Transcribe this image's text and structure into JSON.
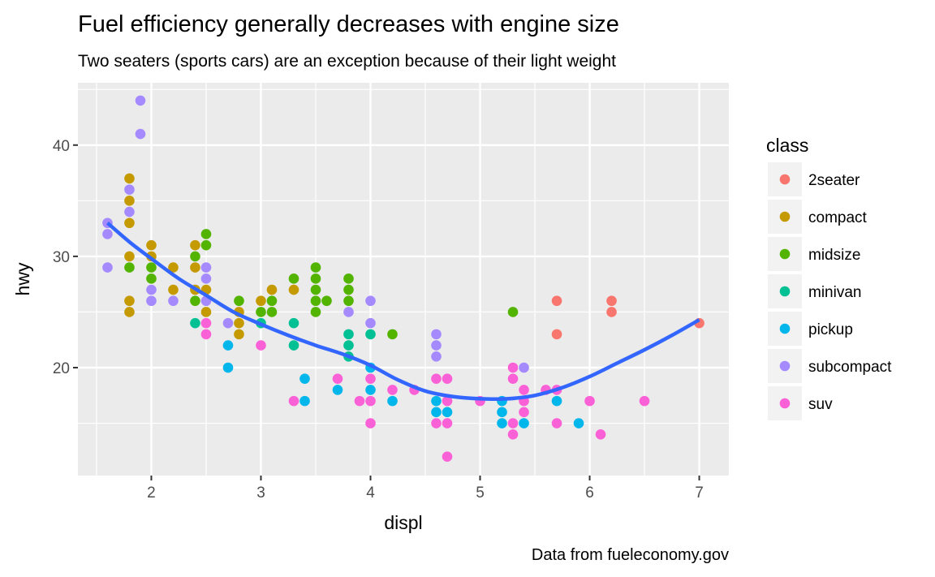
{
  "chart_data": {
    "type": "scatter",
    "title": "Fuel efficiency generally decreases with engine size",
    "subtitle": "Two seaters (sports cars) are an exception because of their light weight",
    "caption": "Data from fueleconomy.gov",
    "xlabel": "displ",
    "ylabel": "hwy",
    "xlim": [
      1.33,
      7.27
    ],
    "ylim": [
      10.3,
      45.6
    ],
    "xticks": [
      2,
      3,
      4,
      5,
      6,
      7
    ],
    "yticks": [
      20,
      30,
      40
    ],
    "x_minor": [
      1.5,
      2.5,
      3.5,
      4.5,
      5.5,
      6.5
    ],
    "y_minor": [
      15,
      25,
      35,
      45
    ],
    "grid": true,
    "legend": {
      "title": "class",
      "position": "right",
      "entries": [
        {
          "name": "2seater",
          "color": "#F8766D"
        },
        {
          "name": "compact",
          "color": "#C49A00"
        },
        {
          "name": "midsize",
          "color": "#53B400"
        },
        {
          "name": "minivan",
          "color": "#00C094"
        },
        {
          "name": "pickup",
          "color": "#00B6EB"
        },
        {
          "name": "subcompact",
          "color": "#A58AFF"
        },
        {
          "name": "suv",
          "color": "#FB61D7"
        }
      ]
    },
    "series": [
      {
        "name": "2seater",
        "points": [
          [
            5.7,
            26
          ],
          [
            5.7,
            23
          ],
          [
            6.2,
            26
          ],
          [
            6.2,
            25
          ],
          [
            7.0,
            24
          ]
        ]
      },
      {
        "name": "compact",
        "points": [
          [
            1.8,
            37
          ],
          [
            1.8,
            35
          ],
          [
            1.8,
            33
          ],
          [
            1.8,
            30
          ],
          [
            1.8,
            26
          ],
          [
            1.8,
            25
          ],
          [
            2.0,
            31
          ],
          [
            2.0,
            30
          ],
          [
            2.2,
            29
          ],
          [
            2.2,
            27
          ],
          [
            2.4,
            31
          ],
          [
            2.4,
            29
          ],
          [
            2.4,
            27
          ],
          [
            2.5,
            27
          ],
          [
            2.5,
            25
          ],
          [
            2.8,
            25
          ],
          [
            2.8,
            24
          ],
          [
            2.8,
            23
          ],
          [
            3.0,
            26
          ],
          [
            3.1,
            27
          ],
          [
            3.3,
            27
          ]
        ]
      },
      {
        "name": "midsize",
        "points": [
          [
            1.8,
            29
          ],
          [
            2.0,
            29
          ],
          [
            2.0,
            28
          ],
          [
            2.4,
            30
          ],
          [
            2.4,
            26
          ],
          [
            2.5,
            32
          ],
          [
            2.5,
            31
          ],
          [
            2.8,
            26
          ],
          [
            3.0,
            25
          ],
          [
            3.1,
            26
          ],
          [
            3.1,
            25
          ],
          [
            3.3,
            28
          ],
          [
            3.5,
            29
          ],
          [
            3.5,
            28
          ],
          [
            3.5,
            27
          ],
          [
            3.5,
            26
          ],
          [
            3.5,
            25
          ],
          [
            3.6,
            26
          ],
          [
            3.8,
            28
          ],
          [
            3.8,
            27
          ],
          [
            3.8,
            26
          ],
          [
            4.2,
            23
          ],
          [
            5.3,
            25
          ]
        ]
      },
      {
        "name": "minivan",
        "points": [
          [
            2.4,
            24
          ],
          [
            3.0,
            24
          ],
          [
            3.3,
            24
          ],
          [
            3.3,
            22
          ],
          [
            3.8,
            23
          ],
          [
            3.8,
            22
          ],
          [
            3.8,
            21
          ],
          [
            4.0,
            23
          ]
        ]
      },
      {
        "name": "pickup",
        "points": [
          [
            2.7,
            22
          ],
          [
            2.7,
            20
          ],
          [
            3.4,
            19
          ],
          [
            3.4,
            17
          ],
          [
            3.7,
            18
          ],
          [
            4.0,
            20
          ],
          [
            4.0,
            18
          ],
          [
            4.2,
            17
          ],
          [
            4.6,
            17
          ],
          [
            4.6,
            16
          ],
          [
            4.7,
            16
          ],
          [
            5.2,
            17
          ],
          [
            5.2,
            16
          ],
          [
            5.2,
            15
          ],
          [
            5.4,
            15
          ],
          [
            5.7,
            17
          ],
          [
            5.9,
            15
          ]
        ]
      },
      {
        "name": "subcompact",
        "points": [
          [
            1.6,
            33
          ],
          [
            1.6,
            32
          ],
          [
            1.6,
            29
          ],
          [
            1.8,
            36
          ],
          [
            1.8,
            34
          ],
          [
            1.9,
            44
          ],
          [
            1.9,
            41
          ],
          [
            2.0,
            27
          ],
          [
            2.0,
            26
          ],
          [
            2.2,
            26
          ],
          [
            2.5,
            29
          ],
          [
            2.5,
            28
          ],
          [
            2.5,
            26
          ],
          [
            2.7,
            24
          ],
          [
            3.8,
            25
          ],
          [
            4.0,
            26
          ],
          [
            4.0,
            24
          ],
          [
            4.6,
            23
          ],
          [
            4.6,
            22
          ],
          [
            4.6,
            21
          ],
          [
            5.4,
            20
          ]
        ]
      },
      {
        "name": "suv",
        "points": [
          [
            2.5,
            24
          ],
          [
            2.5,
            23
          ],
          [
            3.0,
            22
          ],
          [
            3.3,
            17
          ],
          [
            3.7,
            19
          ],
          [
            3.9,
            17
          ],
          [
            4.0,
            19
          ],
          [
            4.0,
            17
          ],
          [
            4.0,
            15
          ],
          [
            4.2,
            18
          ],
          [
            4.4,
            18
          ],
          [
            4.6,
            19
          ],
          [
            4.6,
            15
          ],
          [
            4.7,
            19
          ],
          [
            4.7,
            17
          ],
          [
            4.7,
            15
          ],
          [
            4.7,
            12
          ],
          [
            5.0,
            17
          ],
          [
            5.3,
            20
          ],
          [
            5.3,
            19
          ],
          [
            5.3,
            15
          ],
          [
            5.3,
            14
          ],
          [
            5.4,
            18
          ],
          [
            5.4,
            17
          ],
          [
            5.4,
            16
          ],
          [
            5.6,
            18
          ],
          [
            5.7,
            18
          ],
          [
            5.7,
            15
          ],
          [
            6.0,
            17
          ],
          [
            6.1,
            14
          ],
          [
            6.5,
            17
          ]
        ]
      }
    ],
    "smooth": {
      "color": "#3366FF",
      "points": [
        [
          1.6,
          33.0
        ],
        [
          1.8,
          31.3
        ],
        [
          2.0,
          29.8
        ],
        [
          2.25,
          28.0
        ],
        [
          2.5,
          26.5
        ],
        [
          2.75,
          25.0
        ],
        [
          3.0,
          23.9
        ],
        [
          3.25,
          22.9
        ],
        [
          3.5,
          22.0
        ],
        [
          3.75,
          21.2
        ],
        [
          4.0,
          20.2
        ],
        [
          4.25,
          18.9
        ],
        [
          4.5,
          17.9
        ],
        [
          4.75,
          17.4
        ],
        [
          5.0,
          17.2
        ],
        [
          5.25,
          17.2
        ],
        [
          5.5,
          17.5
        ],
        [
          5.75,
          18.2
        ],
        [
          6.0,
          19.2
        ],
        [
          6.25,
          20.4
        ],
        [
          6.5,
          21.6
        ],
        [
          6.75,
          22.9
        ],
        [
          7.0,
          24.3
        ]
      ]
    }
  }
}
